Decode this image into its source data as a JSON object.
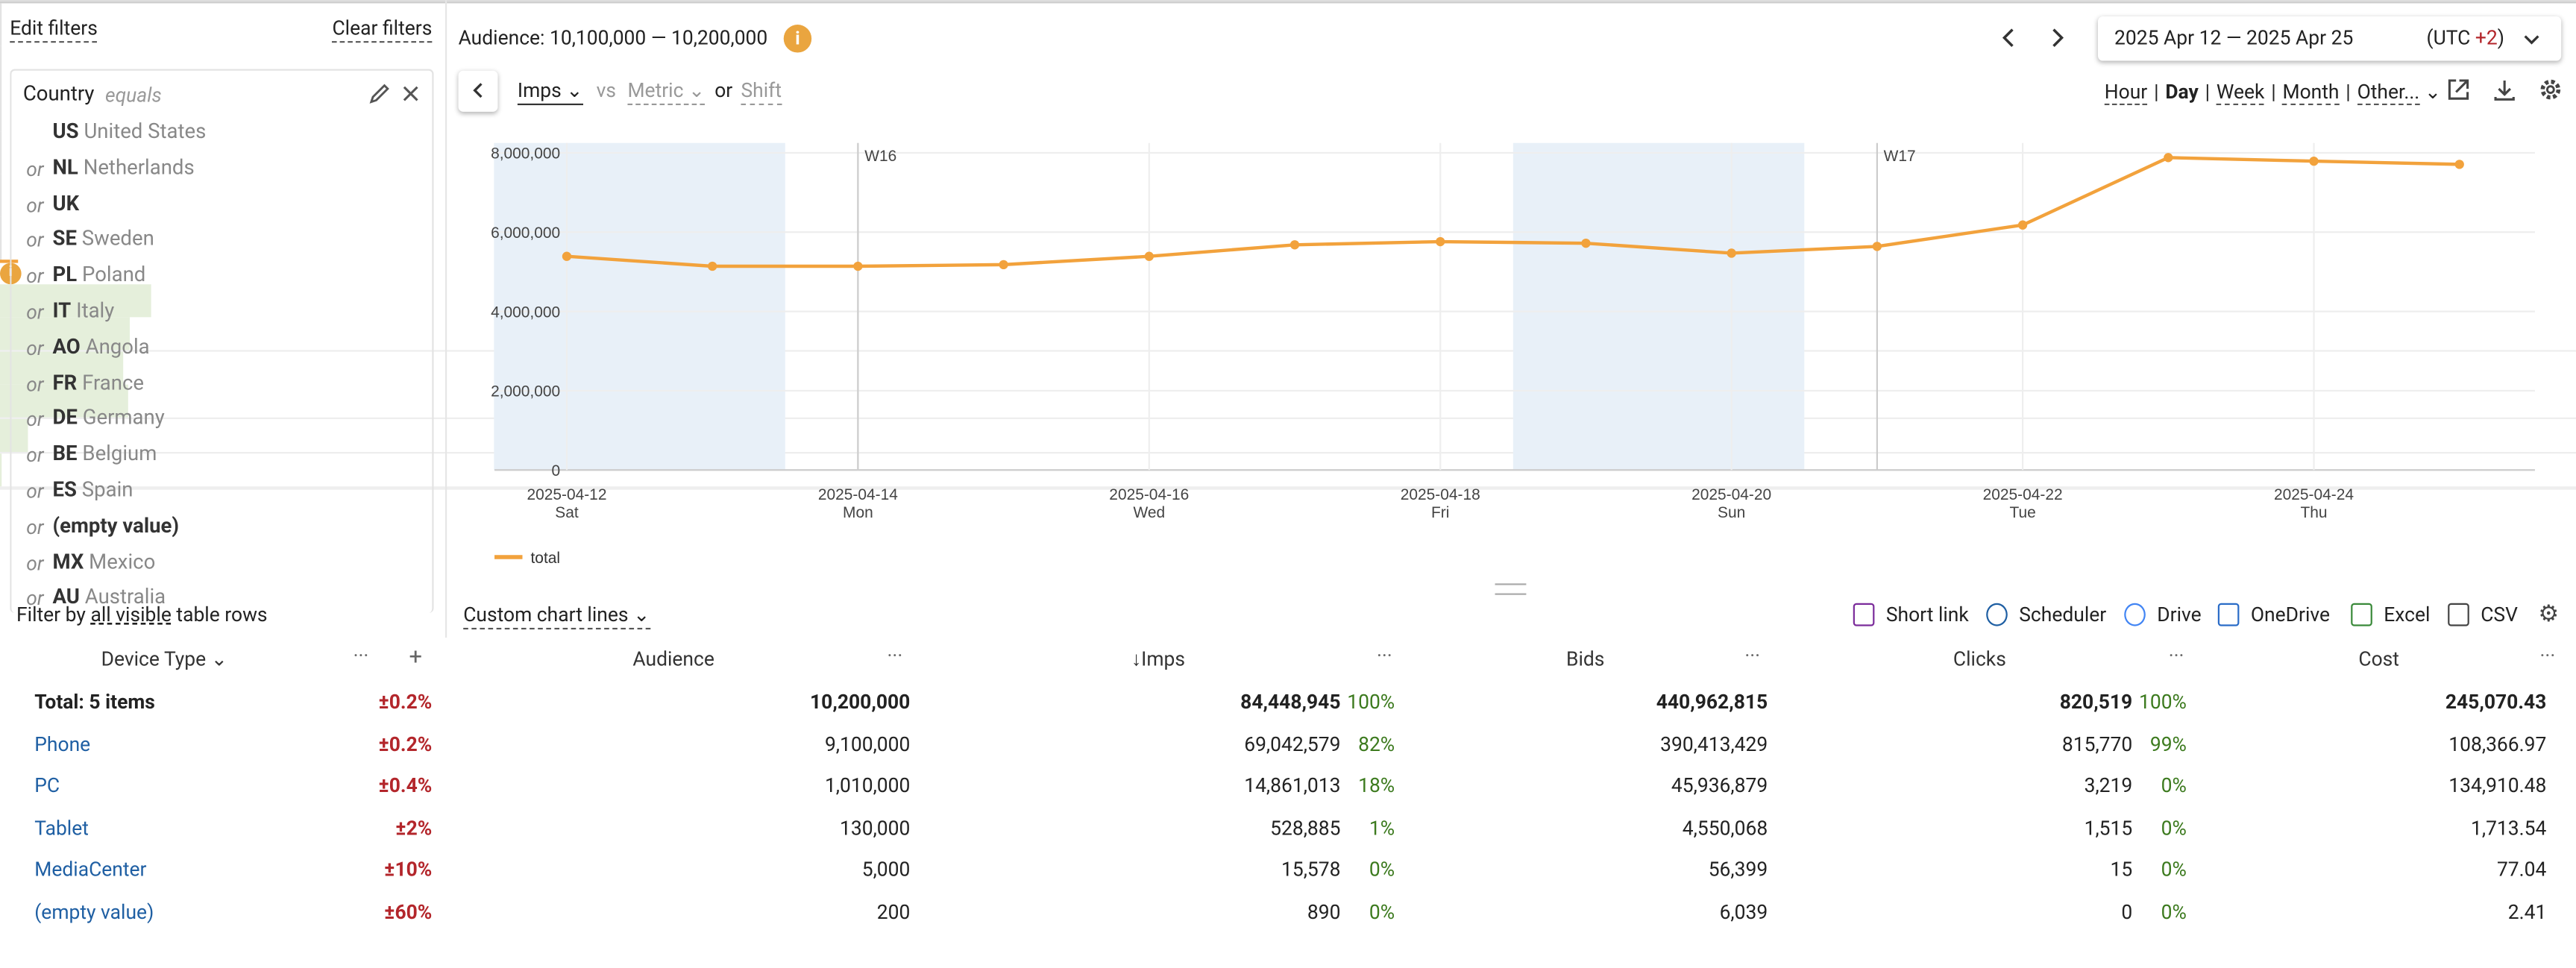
{
  "filters_panel": {
    "edit": "Edit filters",
    "clear": "Clear filters",
    "field": "Country",
    "operator": "equals",
    "connector": "or",
    "items": [
      {
        "code": "US",
        "name": "United States"
      },
      {
        "code": "NL",
        "name": "Netherlands"
      },
      {
        "code": "UK"
      },
      {
        "code": "SE",
        "name": "Sweden"
      },
      {
        "code": "PL",
        "name": "Poland"
      },
      {
        "code": "IT",
        "name": "Italy"
      },
      {
        "code": "AO",
        "name": "Angola"
      },
      {
        "code": "FR",
        "name": "France"
      },
      {
        "code": "DE",
        "name": "Germany"
      },
      {
        "code": "BE",
        "name": "Belgium"
      },
      {
        "code": "ES",
        "name": "Spain"
      },
      {
        "code": "(empty value)"
      },
      {
        "code": "MX",
        "name": "Mexico"
      },
      {
        "code": "AU",
        "name": "Australia"
      }
    ],
    "filter_by": {
      "prefix": "Filter by",
      "link": "all visible",
      "suffix": "table rows"
    }
  },
  "toolbar": {
    "audience": "Audience: 10,100,000 — 10,200,000",
    "date_range": "2025 Apr 12 — 2025 Apr 25",
    "utc_prefix": "(UTC",
    "utc_offset": "+2",
    "utc_suffix": ")",
    "metric": "Imps",
    "vs": "vs",
    "metric2": "Metric",
    "or": "or",
    "shift": "Shift",
    "granularity": [
      "Hour",
      "Day",
      "Week",
      "Month",
      "Other..."
    ],
    "separator": "|"
  },
  "chart_data": {
    "type": "line",
    "categories": [
      "2025-04-12",
      null,
      "2025-04-14",
      null,
      "2025-04-16",
      null,
      "2025-04-18",
      null,
      "2025-04-20",
      null,
      "2025-04-22",
      null,
      "2025-04-24",
      null
    ],
    "weekdays": [
      "Sat",
      null,
      "Mon",
      null,
      "Wed",
      null,
      "Fri",
      null,
      "Sun",
      null,
      "Tue",
      null,
      "Thu",
      null
    ],
    "week_markers": [
      "W16",
      "W17"
    ],
    "series": [
      {
        "name": "total",
        "color": "#f2a23c",
        "values": [
          5390000,
          5140000,
          5140000,
          5180000,
          5390000,
          5680000,
          5760000,
          5720000,
          5470000,
          5640000,
          6180000,
          7880000,
          7790000,
          7710000
        ]
      }
    ],
    "ylim": [
      0,
      8000000
    ],
    "yticks": [
      0,
      {
        "value": 2000000,
        "label": "2,000,000"
      },
      {
        "value": 4000000,
        "label": "4,000,000"
      },
      {
        "value": 6000000,
        "label": "6,000,000"
      },
      {
        "value": 8000000,
        "label": "8,000,000"
      }
    ],
    "grid": true,
    "legend": "bottom-left"
  },
  "table_toolbar": {
    "custom_lines": "Custom chart lines",
    "exports": [
      "Short link",
      "Scheduler",
      "Drive",
      "OneDrive",
      "Excel",
      "CSV"
    ]
  },
  "table": {
    "columns": [
      "Device Type",
      "Audience",
      "Imps",
      "Bids",
      "Clicks",
      "Cost"
    ],
    "add": "+",
    "rows": [
      {
        "name": "Total: 5 items",
        "margin": "±0.2%",
        "audience": "10,200,000",
        "imps": "84,448,945",
        "imps_share": "100%",
        "bids": "440,962,815",
        "clicks": "820,519",
        "clicks_share": "100%",
        "cost": "245,070.43"
      },
      {
        "name": "Phone",
        "margin": "±0.2%",
        "audience": "9,100,000",
        "imps": "69,042,579",
        "imps_share": "82%",
        "bids": "390,413,429",
        "clicks": "815,770",
        "clicks_share": "99%",
        "cost": "108,366.97"
      },
      {
        "name": "PC",
        "margin": "±0.4%",
        "audience": "1,010,000",
        "imps": "14,861,013",
        "imps_share": "18%",
        "bids": "45,936,879",
        "clicks": "3,219",
        "clicks_share": "0%",
        "cost": "134,910.48"
      },
      {
        "name": "Tablet",
        "margin": "±2%",
        "audience": "130,000",
        "imps": "528,885",
        "imps_share": "1%",
        "bids": "4,550,068",
        "clicks": "1,515",
        "clicks_share": "0%",
        "cost": "1,713.54"
      },
      {
        "name": "MediaCenter",
        "margin": "±10%",
        "audience": "5,000",
        "imps": "15,578",
        "imps_share": "0%",
        "bids": "56,399",
        "clicks": "15",
        "clicks_share": "0%",
        "cost": "77.04"
      },
      {
        "name": "(empty value)",
        "margin": "±60%",
        "audience": "200",
        "imps": "890",
        "imps_share": "0%",
        "bids": "6,039",
        "clicks": "0",
        "clicks_share": "0%",
        "cost": "2.41"
      }
    ]
  }
}
